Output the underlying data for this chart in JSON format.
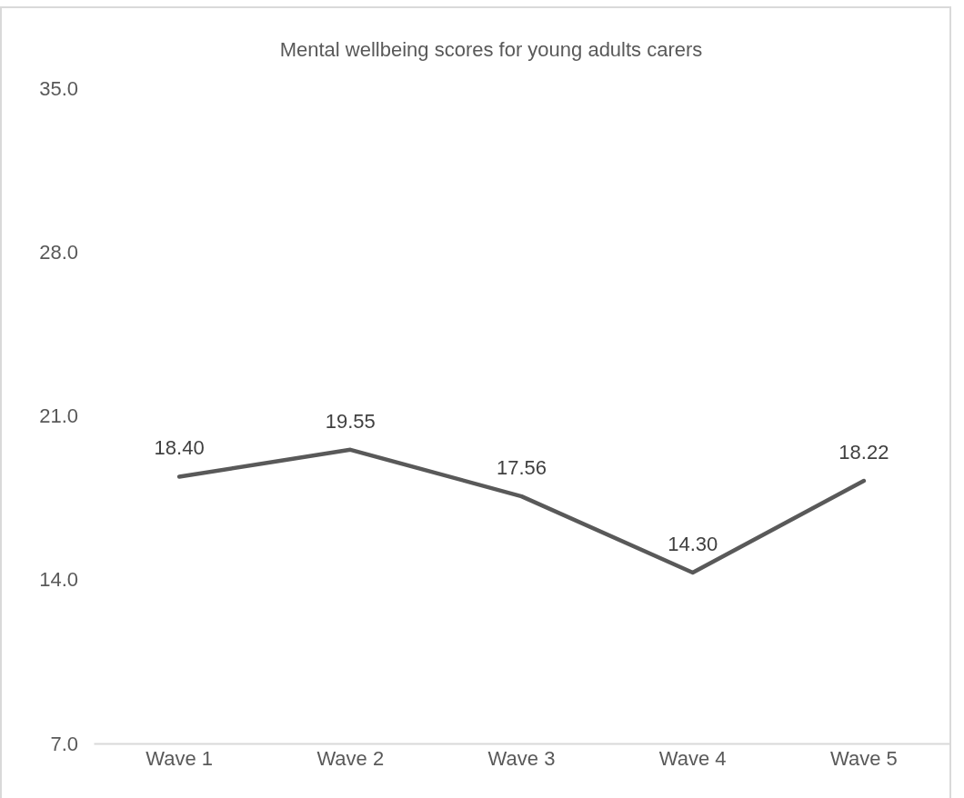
{
  "chart_data": {
    "type": "line",
    "title": "Mental wellbeing scores for young adults carers",
    "categories": [
      "Wave 1",
      "Wave 2",
      "Wave 3",
      "Wave 4",
      "Wave 5"
    ],
    "series": [
      {
        "color": "#595959",
        "values": [
          18.4,
          19.55,
          17.56,
          14.3,
          18.22
        ],
        "value_labels": [
          "18.40",
          "19.55",
          "17.56",
          "14.30",
          "18.22"
        ]
      }
    ],
    "ylim": [
      7,
      35
    ],
    "yticks": [
      {
        "value": 7,
        "label": "7.0"
      },
      {
        "value": 14,
        "label": "14.0"
      },
      {
        "value": 21,
        "label": "21.0"
      },
      {
        "value": 28,
        "label": "28.0"
      },
      {
        "value": 35,
        "label": "35.0"
      }
    ],
    "grid": false,
    "marker": "none",
    "line_style": "solid"
  }
}
